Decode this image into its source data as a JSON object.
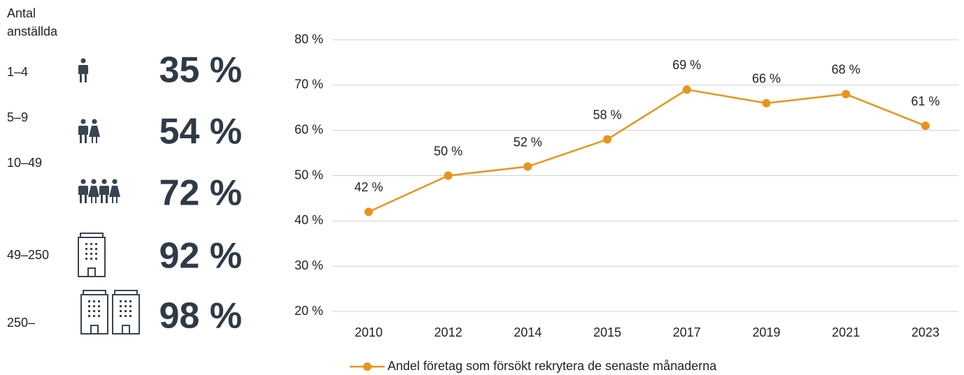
{
  "panel": {
    "header": [
      "Antal",
      "anställda"
    ],
    "rows": [
      {
        "label": "1–4",
        "share": "35 %"
      },
      {
        "label": "5–9",
        "share": "54 %"
      },
      {
        "label": "10–49",
        "share": "72 %"
      },
      {
        "label": "49–250",
        "share": "92 %"
      },
      {
        "label": "250–",
        "share": "98 %"
      }
    ]
  },
  "chart_data": {
    "type": "line",
    "categories": [
      "2010",
      "2012",
      "2014",
      "2015",
      "2017",
      "2019",
      "2021",
      "2023"
    ],
    "series": [
      {
        "name": "Andel företag som försökt rekrytera de senaste månaderna",
        "color": "#e8941a",
        "values": [
          42,
          50,
          52,
          58,
          69,
          66,
          68,
          61
        ],
        "value_labels": [
          "42 %",
          "50 %",
          "52 %",
          "58 %",
          "69 %",
          "66 %",
          "68 %",
          "61 %"
        ]
      }
    ],
    "ylim": [
      20,
      80
    ],
    "yticks": [
      {
        "value": 20,
        "label": "20 %"
      },
      {
        "value": 30,
        "label": "30 %"
      },
      {
        "value": 40,
        "label": "40 %"
      },
      {
        "value": 50,
        "label": "50 %"
      },
      {
        "value": 60,
        "label": "60 %"
      },
      {
        "value": 70,
        "label": "70 %"
      },
      {
        "value": 80,
        "label": "80 %"
      }
    ],
    "grid": true,
    "legend": "bottom"
  }
}
